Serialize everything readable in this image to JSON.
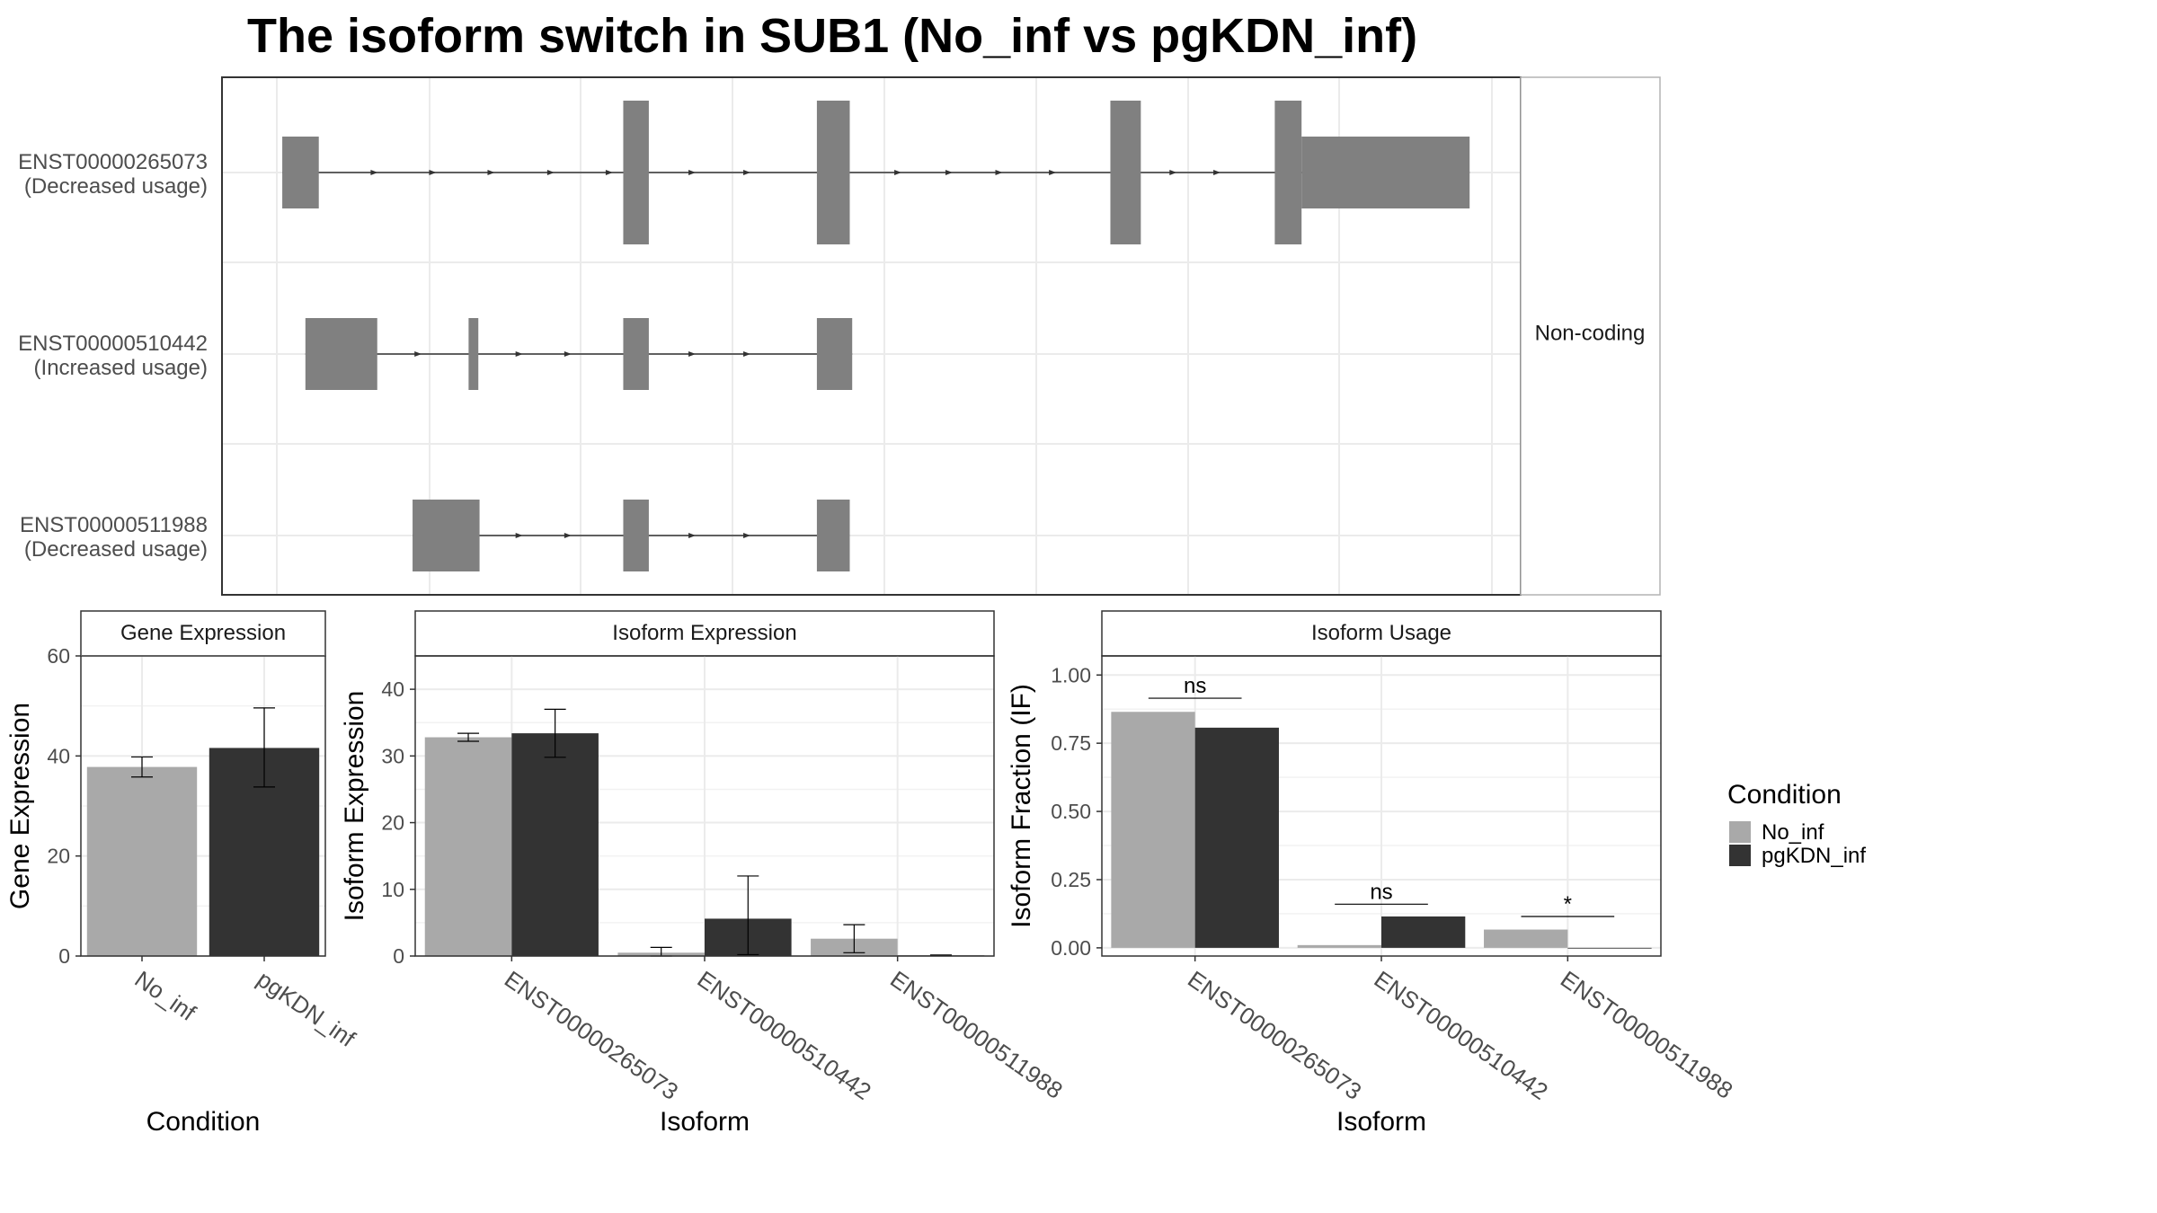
{
  "title": "The isoform switch in SUB1 (No_inf vs pgKDN_inf)",
  "colors": {
    "No_inf": "#a9a9a9",
    "pgKDN_inf": "#333333",
    "exon": "#808080",
    "grid": "#ebebeb",
    "frame": "#333333",
    "strip": "#ffffff"
  },
  "legend": {
    "title": "Condition",
    "items": [
      {
        "label": "No_inf",
        "color": "#a9a9a9"
      },
      {
        "label": "pgKDN_inf",
        "color": "#333333"
      }
    ]
  },
  "chart_data": [
    {
      "type": "gene-structure",
      "facet_label": "Non-coding",
      "x_range": [
        0,
        100
      ],
      "isoforms": [
        {
          "id": "ENST00000265073",
          "usage": "(Decreased usage)",
          "exons": [
            [
              0.3,
              3.3,
              "small"
            ],
            [
              28.3,
              30.4,
              "large"
            ],
            [
              44.2,
              46.9,
              "large"
            ],
            [
              68.3,
              70.8,
              "large"
            ],
            [
              81.8,
              84.0,
              "large"
            ],
            [
              84.0,
              97.8,
              "small"
            ]
          ],
          "arrows": [
            8,
            12.8,
            17.6,
            22.5,
            27.3,
            34.1,
            38.6,
            51,
            55.2,
            59.3,
            63.7,
            73.6,
            77.2
          ]
        },
        {
          "id": "ENST00000510442",
          "usage": "(Increased usage)",
          "exons": [
            [
              2.2,
              8.1,
              "large"
            ],
            [
              15.6,
              16.4,
              "large"
            ],
            [
              28.3,
              30.4,
              "large"
            ],
            [
              44.2,
              47.1,
              "large"
            ]
          ],
          "arrows": [
            11.6,
            19.9,
            23.9,
            34.1,
            38.6
          ]
        },
        {
          "id": "ENST00000511988",
          "usage": "(Decreased usage)",
          "exons": [
            [
              11.0,
              16.5,
              "large"
            ],
            [
              28.3,
              30.4,
              "large"
            ],
            [
              44.2,
              46.9,
              "large"
            ]
          ],
          "arrows": [
            19.9,
            23.9,
            34.1,
            38.6
          ]
        }
      ]
    },
    {
      "type": "bar",
      "title": "Gene Expression",
      "xlabel": "Condition",
      "ylabel": "Gene Expression",
      "ylim": [
        0,
        60
      ],
      "yticks": [
        0,
        20,
        40,
        60
      ],
      "categories": [
        "No_inf",
        "pgKDN_inf"
      ],
      "values": [
        37.8,
        41.6
      ],
      "errors": [
        [
          35.8,
          39.8
        ],
        [
          33.8,
          49.6
        ]
      ]
    },
    {
      "type": "bar",
      "title": "Isoform Expression",
      "xlabel": "Isoform",
      "ylabel": "Isoform Expression",
      "ylim": [
        0,
        45
      ],
      "yticks": [
        0,
        10,
        20,
        30,
        40
      ],
      "categories": [
        "ENST00000265073",
        "ENST00000510442",
        "ENST00000511988"
      ],
      "series": [
        {
          "name": "No_inf",
          "values": [
            32.8,
            0.5,
            2.6
          ],
          "errors": [
            [
              32.2,
              33.4
            ],
            [
              0,
              1.3
            ],
            [
              0.5,
              4.7
            ]
          ]
        },
        {
          "name": "pgKDN_inf",
          "values": [
            33.4,
            5.6,
            0.1
          ],
          "errors": [
            [
              29.8,
              37.0
            ],
            [
              0.2,
              12.0
            ],
            [
              0.05,
              0.15
            ]
          ]
        }
      ]
    },
    {
      "type": "bar",
      "title": "Isoform Usage",
      "xlabel": "Isoform",
      "ylabel": "Isoform Fraction (IF)",
      "ylim": [
        -0.03,
        1.07
      ],
      "yticks": [
        "0.00",
        "0.25",
        "0.50",
        "0.75",
        "1.00"
      ],
      "categories": [
        "ENST00000265073",
        "ENST00000510442",
        "ENST00000511988"
      ],
      "series": [
        {
          "name": "No_inf",
          "values": [
            0.865,
            0.01,
            0.067
          ]
        },
        {
          "name": "pgKDN_inf",
          "values": [
            0.807,
            0.115,
            0.0
          ]
        }
      ],
      "significance": [
        {
          "label": "ns",
          "y": 0.915
        },
        {
          "label": "ns",
          "y": 0.16
        },
        {
          "label": "*",
          "y": 0.115
        }
      ]
    }
  ]
}
